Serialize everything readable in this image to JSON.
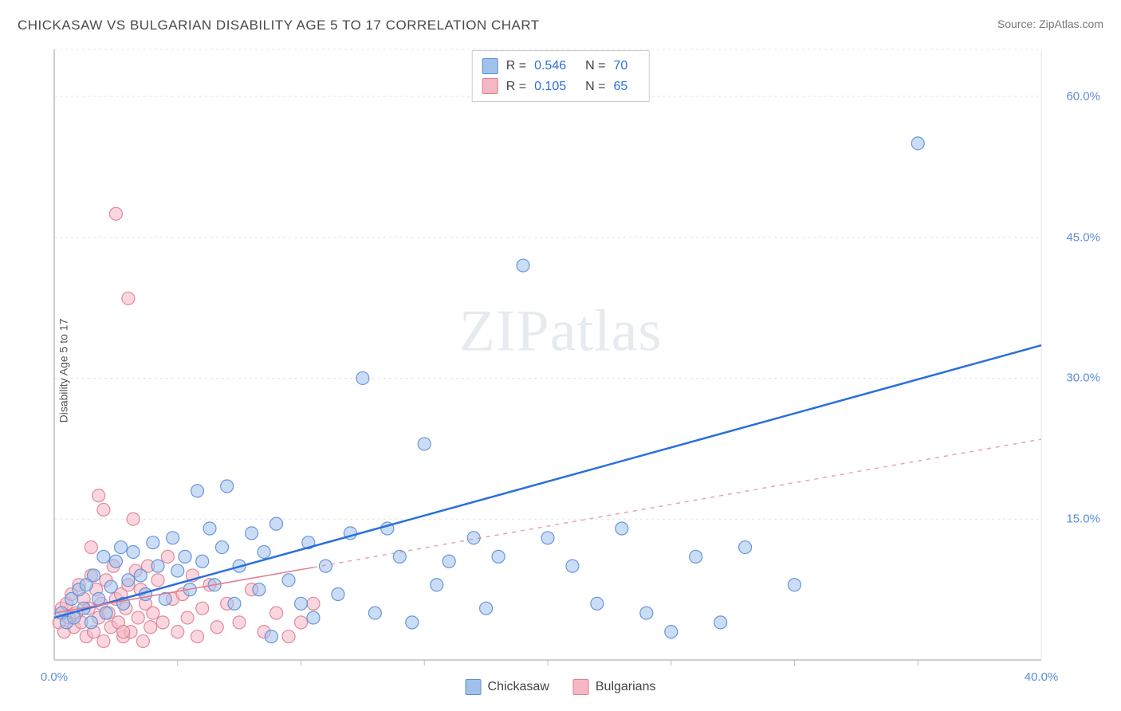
{
  "title": "CHICKASAW VS BULGARIAN DISABILITY AGE 5 TO 17 CORRELATION CHART",
  "source_label": "Source:",
  "source_name": "ZipAtlas.com",
  "ylabel": "Disability Age 5 to 17",
  "watermark": "ZIPatlas",
  "chart": {
    "type": "scatter",
    "xlim": [
      0,
      40
    ],
    "ylim": [
      0,
      65
    ],
    "x_ticks": [
      0,
      40
    ],
    "y_ticks": [
      15,
      30,
      45,
      60
    ],
    "x_tick_labels": [
      "0.0%",
      "40.0%"
    ],
    "y_tick_labels": [
      "15.0%",
      "30.0%",
      "45.0%",
      "60.0%"
    ],
    "x_minor_ticks": [
      5,
      10,
      15,
      20,
      25,
      30,
      35
    ],
    "grid_color": "#e4e4e4",
    "axis_color": "#bdbdbd",
    "background": "#ffffff",
    "marker_radius": 8,
    "marker_opacity": 0.55,
    "series": [
      {
        "name": "Chickasaw",
        "color_fill": "#9fc1ec",
        "color_stroke": "#5b8dd6",
        "R": "0.546",
        "N": "70",
        "trend": {
          "x1": 0,
          "y1": 4.5,
          "x2": 40,
          "y2": 33.5,
          "dash_from_x": null,
          "width": 2.5,
          "color": "#2a6fdb"
        },
        "points": [
          [
            0.3,
            5.0
          ],
          [
            0.5,
            4.0
          ],
          [
            0.7,
            6.5
          ],
          [
            0.8,
            4.5
          ],
          [
            1.0,
            7.5
          ],
          [
            1.2,
            5.5
          ],
          [
            1.3,
            8.0
          ],
          [
            1.5,
            4.0
          ],
          [
            1.6,
            9.0
          ],
          [
            1.8,
            6.5
          ],
          [
            2.0,
            11.0
          ],
          [
            2.1,
            5.0
          ],
          [
            2.3,
            7.8
          ],
          [
            2.5,
            10.5
          ],
          [
            2.7,
            12.0
          ],
          [
            2.8,
            6.0
          ],
          [
            3.0,
            8.5
          ],
          [
            3.2,
            11.5
          ],
          [
            3.5,
            9.0
          ],
          [
            3.7,
            7.0
          ],
          [
            4.0,
            12.5
          ],
          [
            4.2,
            10.0
          ],
          [
            4.5,
            6.5
          ],
          [
            4.8,
            13.0
          ],
          [
            5.0,
            9.5
          ],
          [
            5.3,
            11.0
          ],
          [
            5.5,
            7.5
          ],
          [
            5.8,
            18.0
          ],
          [
            6.0,
            10.5
          ],
          [
            6.3,
            14.0
          ],
          [
            6.5,
            8.0
          ],
          [
            6.8,
            12.0
          ],
          [
            7.0,
            18.5
          ],
          [
            7.3,
            6.0
          ],
          [
            7.5,
            10.0
          ],
          [
            8.0,
            13.5
          ],
          [
            8.3,
            7.5
          ],
          [
            8.5,
            11.5
          ],
          [
            8.8,
            2.5
          ],
          [
            9.0,
            14.5
          ],
          [
            9.5,
            8.5
          ],
          [
            10.0,
            6.0
          ],
          [
            10.3,
            12.5
          ],
          [
            10.5,
            4.5
          ],
          [
            11.0,
            10.0
          ],
          [
            11.5,
            7.0
          ],
          [
            12.0,
            13.5
          ],
          [
            12.5,
            30.0
          ],
          [
            13.0,
            5.0
          ],
          [
            13.5,
            14.0
          ],
          [
            14.0,
            11.0
          ],
          [
            14.5,
            4.0
          ],
          [
            15.0,
            23.0
          ],
          [
            15.5,
            8.0
          ],
          [
            16.0,
            10.5
          ],
          [
            17.0,
            13.0
          ],
          [
            17.5,
            5.5
          ],
          [
            18.0,
            11.0
          ],
          [
            19.0,
            42.0
          ],
          [
            20.0,
            13.0
          ],
          [
            21.0,
            10.0
          ],
          [
            22.0,
            6.0
          ],
          [
            23.0,
            14.0
          ],
          [
            24.0,
            5.0
          ],
          [
            25.0,
            3.0
          ],
          [
            26.0,
            11.0
          ],
          [
            27.0,
            4.0
          ],
          [
            35.0,
            55.0
          ],
          [
            30.0,
            8.0
          ],
          [
            28.0,
            12.0
          ]
        ]
      },
      {
        "name": "Bulgarians",
        "color_fill": "#f5b7c3",
        "color_stroke": "#de7d92",
        "R": "0.105",
        "N": "65",
        "trend": {
          "x1": 0,
          "y1": 5.0,
          "x2": 40,
          "y2": 23.5,
          "dash_from_x": 10.5,
          "width": 1.5,
          "color": "#e27a90"
        },
        "points": [
          [
            0.2,
            4.0
          ],
          [
            0.3,
            5.5
          ],
          [
            0.4,
            3.0
          ],
          [
            0.5,
            6.0
          ],
          [
            0.6,
            4.5
          ],
          [
            0.7,
            7.0
          ],
          [
            0.8,
            3.5
          ],
          [
            0.9,
            5.0
          ],
          [
            1.0,
            8.0
          ],
          [
            1.1,
            4.0
          ],
          [
            1.2,
            6.5
          ],
          [
            1.3,
            2.5
          ],
          [
            1.4,
            5.5
          ],
          [
            1.5,
            9.0
          ],
          [
            1.6,
            3.0
          ],
          [
            1.7,
            7.5
          ],
          [
            1.8,
            4.5
          ],
          [
            1.9,
            6.0
          ],
          [
            2.0,
            2.0
          ],
          [
            2.1,
            8.5
          ],
          [
            2.2,
            5.0
          ],
          [
            2.3,
            3.5
          ],
          [
            2.4,
            10.0
          ],
          [
            2.5,
            6.5
          ],
          [
            2.6,
            4.0
          ],
          [
            2.7,
            7.0
          ],
          [
            2.8,
            2.5
          ],
          [
            2.9,
            5.5
          ],
          [
            3.0,
            8.0
          ],
          [
            3.1,
            3.0
          ],
          [
            3.2,
            15.0
          ],
          [
            3.3,
            9.5
          ],
          [
            3.4,
            4.5
          ],
          [
            3.5,
            7.5
          ],
          [
            3.6,
            2.0
          ],
          [
            3.7,
            6.0
          ],
          [
            3.8,
            10.0
          ],
          [
            3.9,
            3.5
          ],
          [
            4.0,
            5.0
          ],
          [
            4.2,
            8.5
          ],
          [
            4.4,
            4.0
          ],
          [
            4.6,
            11.0
          ],
          [
            4.8,
            6.5
          ],
          [
            5.0,
            3.0
          ],
          [
            5.2,
            7.0
          ],
          [
            5.4,
            4.5
          ],
          [
            5.6,
            9.0
          ],
          [
            5.8,
            2.5
          ],
          [
            6.0,
            5.5
          ],
          [
            6.3,
            8.0
          ],
          [
            6.6,
            3.5
          ],
          [
            7.0,
            6.0
          ],
          [
            7.5,
            4.0
          ],
          [
            8.0,
            7.5
          ],
          [
            8.5,
            3.0
          ],
          [
            9.0,
            5.0
          ],
          [
            9.5,
            2.5
          ],
          [
            10.0,
            4.0
          ],
          [
            10.5,
            6.0
          ],
          [
            2.0,
            16.0
          ],
          [
            1.8,
            17.5
          ],
          [
            2.5,
            47.5
          ],
          [
            3.0,
            38.5
          ],
          [
            1.5,
            12.0
          ],
          [
            2.8,
            3.0
          ]
        ]
      }
    ]
  },
  "legend_labels": {
    "R": "R =",
    "N": "N ="
  },
  "bottom_legend": [
    "Chickasaw",
    "Bulgarians"
  ]
}
